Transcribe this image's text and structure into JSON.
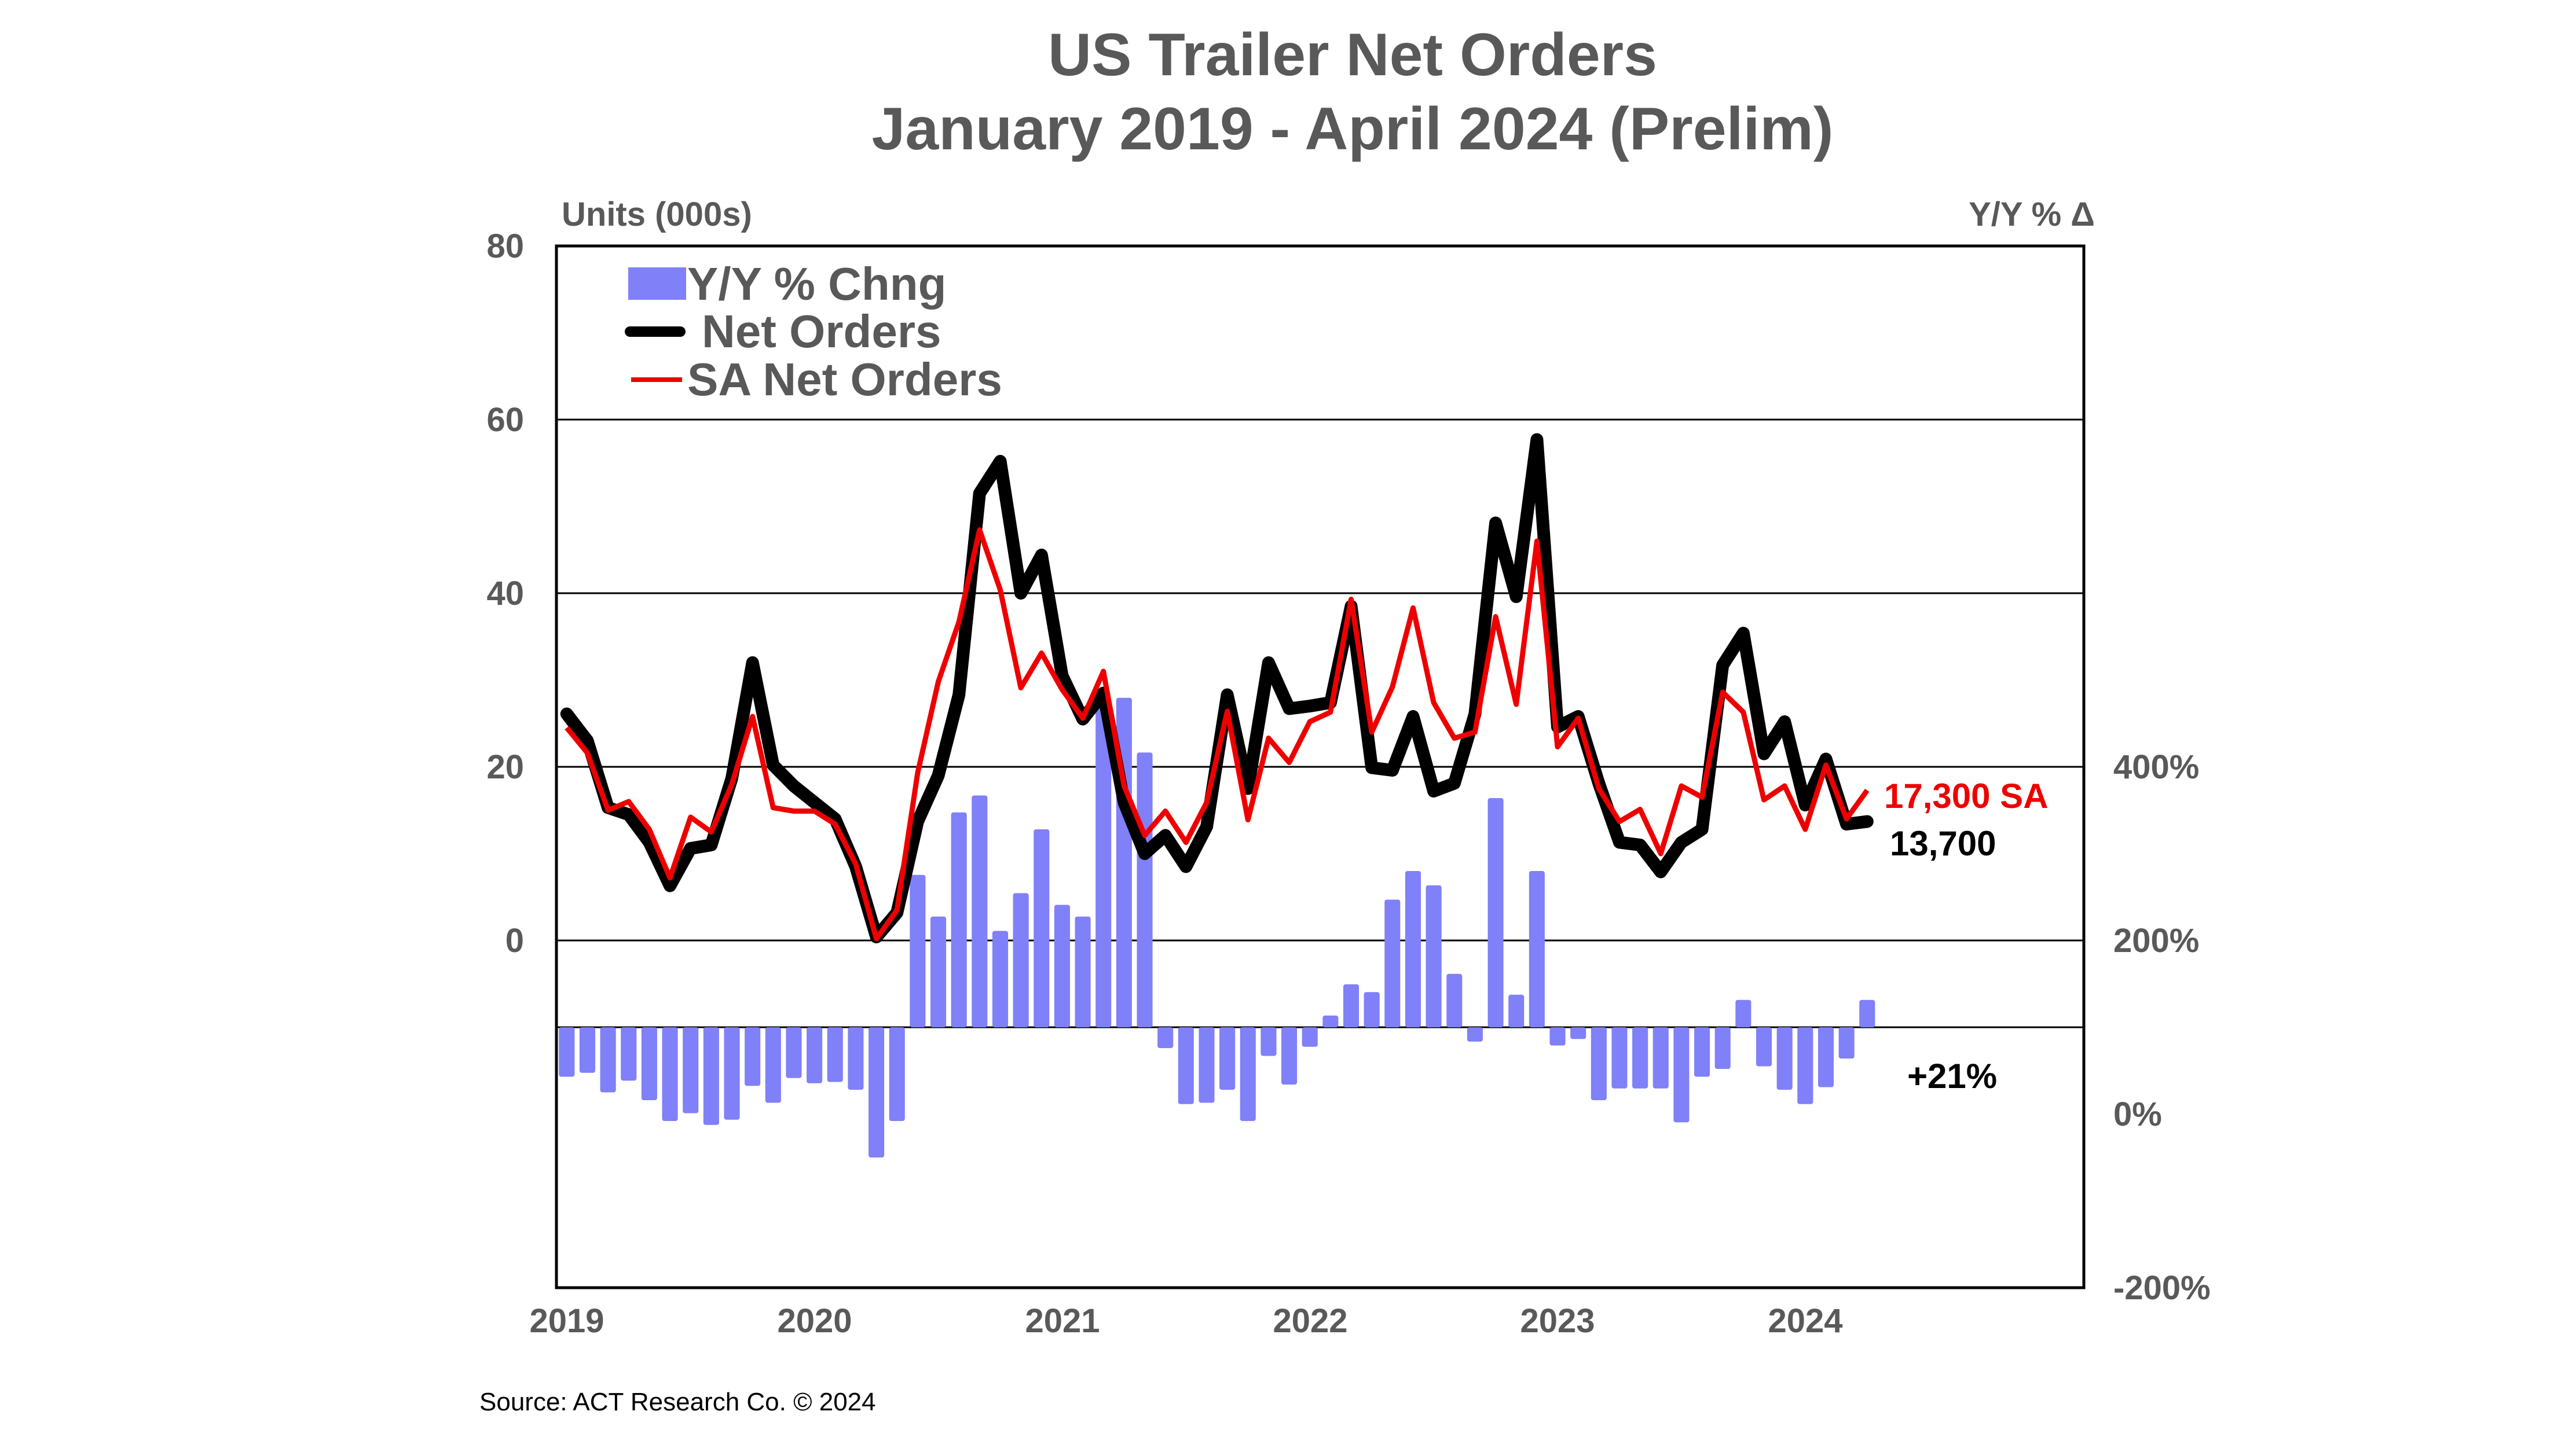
{
  "chart_data": {
    "type": "bar+line",
    "title": "US Trailer Net Orders",
    "subtitle": "January 2019 - April 2024 (Prelim)",
    "ylabel_left": "Units (000s)",
    "ylabel_right": "Y/Y % Δ",
    "ylim_left": [
      -40,
      80
    ],
    "ylim_right": [
      -200,
      600
    ],
    "left_ticks": [
      "80",
      "60",
      "40",
      "20",
      "0"
    ],
    "right_ticks": [
      "400%",
      "200%",
      "0%",
      "-200%"
    ],
    "x_ticks": [
      "2019",
      "2020",
      "2021",
      "2022",
      "2023",
      "2024"
    ],
    "x_start": "2019-01",
    "x_end": "2024-04",
    "frequency": "monthly",
    "grid": true,
    "legend_placement": "top-left",
    "series": [
      {
        "name": "Y/Y % Chng",
        "type": "bar",
        "axis": "right",
        "color": "#8080F8",
        "values": [
          -38,
          -35,
          -50,
          -41,
          -56,
          -72,
          -66,
          -75,
          -71,
          -45,
          -58,
          -39,
          -43,
          -42,
          -48,
          -100,
          -72,
          117,
          85,
          165,
          178,
          74,
          103,
          152,
          94,
          85,
          245,
          253,
          211,
          -16,
          -59,
          -58,
          -48,
          -72,
          -22,
          -44,
          -15,
          9,
          33,
          27,
          98,
          120,
          109,
          41,
          -11,
          176,
          25,
          120,
          -14,
          -9,
          -56,
          -47,
          -47,
          -47,
          -73,
          -38,
          -32,
          21,
          -30,
          -48,
          -59,
          -46,
          -24,
          21
        ]
      },
      {
        "name": "Net Orders",
        "type": "line",
        "axis": "left",
        "color": "#000000",
        "values": [
          26.1,
          23,
          15.3,
          14.5,
          11.3,
          6.3,
          10.6,
          11,
          18.7,
          32,
          20.2,
          17.8,
          15.9,
          14,
          8.5,
          0.4,
          3.2,
          13.7,
          19,
          28.3,
          51.5,
          55.2,
          40,
          44.4,
          30.5,
          25.5,
          28.5,
          15.9,
          10,
          12.1,
          8.5,
          13.1,
          28.3,
          17.5,
          32,
          26.7,
          27,
          27.4,
          38.5,
          19.9,
          19.6,
          25.8,
          17.2,
          18.1,
          26.1,
          48.1,
          39.6,
          57.7,
          24.6,
          25.8,
          18.1,
          11.3,
          11,
          7.9,
          11.3,
          12.8,
          31.7,
          35.4,
          21.5,
          25.2,
          15.6,
          20.9,
          13.4,
          13.7
        ]
      },
      {
        "name": "SA Net Orders",
        "type": "line",
        "axis": "left",
        "color": "#EE0000",
        "values": [
          24.5,
          21.6,
          15,
          16,
          12.8,
          7.2,
          14.2,
          12.5,
          18,
          25.8,
          15.3,
          14.9,
          14.9,
          13.4,
          8.8,
          0.2,
          3.5,
          19.3,
          29.8,
          36.7,
          47.3,
          40.4,
          29.1,
          33.1,
          28.9,
          25.6,
          31,
          17.8,
          12.1,
          14.9,
          11.3,
          15.9,
          26.4,
          13.9,
          23.3,
          20.5,
          25.2,
          26.3,
          39.3,
          24,
          29.2,
          38.3,
          27.4,
          23.3,
          24,
          37.3,
          27.2,
          46,
          22.3,
          25.6,
          17.5,
          13.7,
          15.1,
          10,
          17.8,
          16.5,
          28.6,
          26.3,
          16.2,
          17.8,
          12.8,
          20.2,
          14,
          17.3
        ]
      }
    ],
    "annotations": {
      "sa_last": "17,300 SA",
      "net_last": "13,700",
      "yoy_last": "+21%"
    }
  },
  "source": "Source: ACT Research Co. © 2024"
}
